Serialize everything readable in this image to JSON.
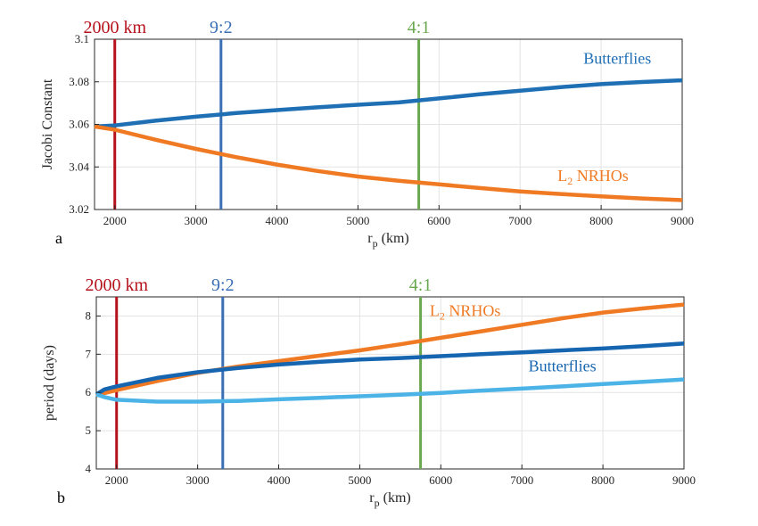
{
  "chart_data": [
    {
      "type": "line",
      "panel_label": "a",
      "xlabel_main": "r",
      "xlabel_sub": "p",
      "xlabel_unit": " (km)",
      "ylabel": "Jacobi Constant",
      "xlim": [
        1750,
        9000
      ],
      "ylim": [
        3.02,
        3.1
      ],
      "xticks": [
        2000,
        3000,
        4000,
        5000,
        6000,
        7000,
        8000,
        9000
      ],
      "yticks": [
        3.02,
        3.04,
        3.06,
        3.08,
        3.1
      ],
      "ytick_labels": [
        "3.02",
        "3.04",
        "3.06",
        "3.08",
        "3.1"
      ],
      "grid": true,
      "vlines": [
        {
          "x": 2000,
          "label": "2000 km",
          "color": "#b5121b"
        },
        {
          "x": 3310,
          "label": "9:2",
          "color": "#3a6fb5"
        },
        {
          "x": 5750,
          "label": "4:1",
          "color": "#6aa84f"
        }
      ],
      "series": [
        {
          "name": "Butterflies",
          "color": "#1f6fb5",
          "x": [
            1750,
            2000,
            2500,
            3000,
            3500,
            4000,
            4500,
            5000,
            5500,
            6000,
            6500,
            7000,
            7500,
            8000,
            8500,
            9000
          ],
          "y": [
            3.059,
            3.0595,
            3.0617,
            3.0636,
            3.0653,
            3.0667,
            3.068,
            3.0692,
            3.0703,
            3.0722,
            3.0741,
            3.0758,
            3.0775,
            3.0789,
            3.0799,
            3.0807
          ]
        },
        {
          "name_main": "L",
          "name_sub": "2",
          "name_rest": " NRHOs",
          "color": "#f07a23",
          "x": [
            1750,
            2000,
            2500,
            3000,
            3500,
            4000,
            4500,
            5000,
            5500,
            6000,
            6500,
            7000,
            7500,
            8000,
            8500,
            9000
          ],
          "y": [
            3.059,
            3.0575,
            3.0528,
            3.0485,
            3.0446,
            3.0411,
            3.0381,
            3.0355,
            3.0335,
            3.0318,
            3.0301,
            3.0285,
            3.0273,
            3.0262,
            3.0252,
            3.0244
          ]
        }
      ],
      "annotations": [
        {
          "target": "Butterflies",
          "at": [
            8200,
            3.0885
          ]
        },
        {
          "target": "L2 NRHOs",
          "at": [
            7900,
            3.0335
          ]
        }
      ]
    },
    {
      "type": "line",
      "panel_label": "b",
      "xlabel_main": "r",
      "xlabel_sub": "p",
      "xlabel_unit": " (km)",
      "ylabel": "period (days)",
      "xlim": [
        1750,
        9000
      ],
      "ylim": [
        4,
        8.5
      ],
      "xticks": [
        2000,
        3000,
        4000,
        5000,
        6000,
        7000,
        8000,
        9000
      ],
      "yticks": [
        4,
        5,
        6,
        7,
        8
      ],
      "ytick_labels": [
        "4",
        "5",
        "6",
        "7",
        "8"
      ],
      "grid": true,
      "vlines": [
        {
          "x": 2000,
          "label": "2000 km",
          "color": "#b5121b"
        },
        {
          "x": 3310,
          "label": "9:2",
          "color": "#3a6fb5"
        },
        {
          "x": 5750,
          "label": "4:1",
          "color": "#6aa84f"
        }
      ],
      "series": [
        {
          "name_main": "L",
          "name_sub": "2",
          "name_rest": " NRHOs",
          "color": "#f07a23",
          "x": [
            1750,
            2000,
            2500,
            3000,
            3500,
            4000,
            4500,
            5000,
            5500,
            6000,
            6500,
            7000,
            7500,
            8000,
            8500,
            9000
          ],
          "y": [
            5.93,
            6.06,
            6.3,
            6.51,
            6.68,
            6.82,
            6.96,
            7.1,
            7.26,
            7.43,
            7.6,
            7.77,
            7.94,
            8.09,
            8.2,
            8.3
          ]
        },
        {
          "name": "Butterflies",
          "color": "#1565b0",
          "x": [
            1750,
            1850,
            2000,
            2500,
            3000,
            3500,
            4000,
            4500,
            5000,
            5500,
            6000,
            6500,
            7000,
            7500,
            8000,
            8500,
            9000
          ],
          "y": [
            5.95,
            6.08,
            6.16,
            6.38,
            6.53,
            6.64,
            6.73,
            6.8,
            6.86,
            6.9,
            6.95,
            7.0,
            7.05,
            7.1,
            7.15,
            7.21,
            7.28
          ]
        },
        {
          "color": "#4cb3e6",
          "x": [
            1750,
            1850,
            2000,
            2500,
            3000,
            3500,
            4000,
            4500,
            5000,
            5500,
            6000,
            6500,
            7000,
            7500,
            8000,
            8500,
            9000
          ],
          "y": [
            5.95,
            5.88,
            5.81,
            5.76,
            5.76,
            5.78,
            5.82,
            5.86,
            5.9,
            5.94,
            5.99,
            6.05,
            6.1,
            6.16,
            6.22,
            6.28,
            6.34
          ]
        }
      ],
      "annotations": [
        {
          "target": "L2 NRHOs",
          "at": [
            6300,
            8.0
          ]
        },
        {
          "target": "Butterflies",
          "at": [
            7500,
            6.55
          ]
        }
      ]
    }
  ]
}
